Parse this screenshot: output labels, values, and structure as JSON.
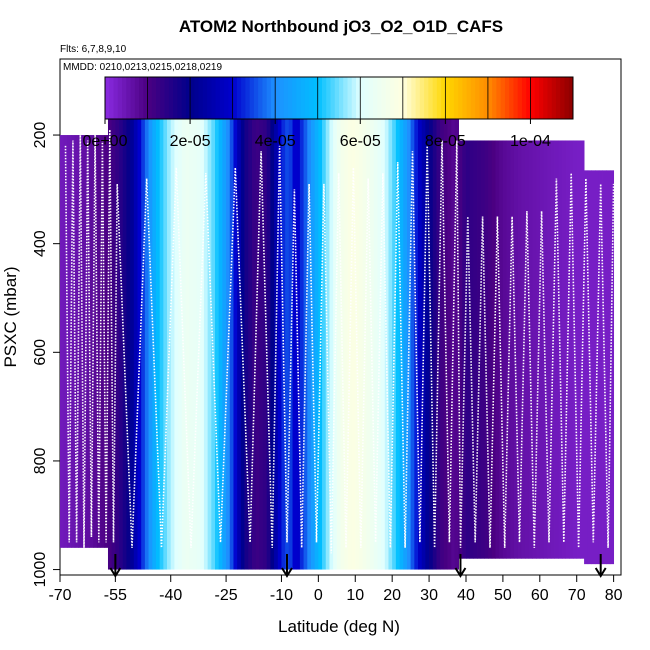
{
  "chart_data": {
    "type": "heatmap",
    "title": "ATOM2 Northbound jO3_O2_O1D_CAFS",
    "subtitle_flights": "Flts: 6,7,8,9,10",
    "subtitle_dates": "MMDD: 0210,0213,0215,0218,0219",
    "xlabel": "Latitude (deg N)",
    "ylabel": "PSXC (mbar)",
    "xlim": [
      -70,
      82
    ],
    "ylim": [
      1010,
      60
    ],
    "x_ticks": [
      -70,
      -55,
      -40,
      -25,
      -10,
      0,
      10,
      20,
      30,
      40,
      50,
      60,
      70,
      80
    ],
    "y_ticks": [
      200,
      400,
      600,
      800,
      1000
    ],
    "colorbar": {
      "min": 0,
      "max": 0.00011,
      "tick_values": [
        0,
        2e-05,
        4e-05,
        6e-05,
        8e-05,
        0.0001
      ],
      "tick_labels": [
        "0e+00",
        "2e-05",
        "4e-05",
        "6e-05",
        "8e-05",
        "1e-04"
      ],
      "colors": [
        "#8a2be2",
        "#4b0082",
        "#00008b",
        "#0000cd",
        "#1e90ff",
        "#00bfff",
        "#e0ffff",
        "#ffffe0",
        "#ffd700",
        "#ff8c00",
        "#ff0000",
        "#8b0000"
      ]
    },
    "latitude_profile": {
      "lat": [
        -70,
        -67,
        -62,
        -57,
        -54,
        -51,
        -48,
        -44,
        -40,
        -36,
        -32,
        -28,
        -24,
        -20,
        -17,
        -14,
        -12,
        -10,
        -8,
        -6,
        -3,
        0,
        3,
        6,
        9,
        12,
        15,
        18,
        21,
        24,
        27,
        30,
        33,
        35,
        37,
        40,
        45,
        50,
        55,
        60,
        65,
        70,
        75,
        80
      ],
      "value": [
        4e-06,
        5e-06,
        7e-06,
        1e-05,
        1.4e-05,
        2e-05,
        3.2e-05,
        4.8e-05,
        5.8e-05,
        6.4e-05,
        6.2e-05,
        5.3e-05,
        3.8e-05,
        1.8e-05,
        1.2e-05,
        1.4e-05,
        2.2e-05,
        3.2e-05,
        3.6e-05,
        2.8e-05,
        3.8e-05,
        4.8e-05,
        5.8e-05,
        6.6e-05,
        6.9e-05,
        6.7e-05,
        6.4e-05,
        6e-05,
        5.2e-05,
        4.2e-05,
        3e-05,
        2e-05,
        1.2e-05,
        1e-05,
        8e-06,
        1.4e-05,
        1.2e-05,
        8e-06,
        6e-06,
        5e-06,
        4e-06,
        3e-06,
        3e-06,
        3e-06
      ]
    },
    "data_coverage": [
      {
        "lat_min": -70,
        "lat_max": -57,
        "p_top": 200,
        "p_bottom": 960
      },
      {
        "lat_min": -57,
        "lat_max": 38,
        "p_top": 150,
        "p_bottom": 1000
      },
      {
        "lat_min": 37,
        "lat_max": 72,
        "p_top": 210,
        "p_bottom": 980
      },
      {
        "lat_min": 72,
        "lat_max": 80,
        "p_top": 265,
        "p_bottom": 990
      }
    ],
    "flight_track": {
      "lat": [
        -68.5,
        -67.5,
        -66.5,
        -65.5,
        -64.5,
        -63.5,
        -62.5,
        -61.5,
        -60.5,
        -59.5,
        -58.5,
        -57.5,
        -56.5,
        -55.5,
        -54.5,
        -50.5,
        -46.5,
        -42.5,
        -38.5,
        -34.5,
        -30.5,
        -26.5,
        -22.5,
        -18.5,
        -15.5,
        -12.5,
        -10.5,
        -8.5,
        -6.5,
        -4.5,
        -2.5,
        -0.5,
        1.5,
        3.5,
        5.5,
        7.5,
        9.5,
        11.5,
        13.5,
        15.5,
        17.5,
        19.5,
        21.5,
        23.5,
        25.5,
        27.5,
        29.5,
        31.5,
        33.5,
        35.5,
        37.5,
        38.5,
        40.5,
        42.5,
        44.5,
        46.5,
        48.5,
        50.5,
        52.5,
        54.5,
        56.5,
        58.5,
        60.5,
        62.5,
        64.5,
        66.5,
        68.5,
        70.5,
        72.5,
        74.5,
        76.5,
        78.5,
        80.0
      ],
      "pressure": [
        220,
        950,
        210,
        950,
        200,
        960,
        210,
        940,
        200,
        950,
        210,
        950,
        190,
        950,
        290,
        960,
        280,
        960,
        260,
        960,
        270,
        950,
        260,
        950,
        230,
        960,
        220,
        950,
        300,
        960,
        290,
        950,
        290,
        970,
        270,
        960,
        260,
        960,
        280,
        950,
        270,
        960,
        250,
        960,
        230,
        950,
        220,
        960,
        210,
        950,
        210,
        960,
        350,
        950,
        350,
        960,
        350,
        960,
        350,
        950,
        340,
        960,
        340,
        950,
        280,
        950,
        270,
        960,
        280,
        950,
        290,
        960,
        290
      ]
    },
    "ascent_arrows_lat": [
      -55,
      -8.5,
      38.5,
      76.5
    ]
  }
}
